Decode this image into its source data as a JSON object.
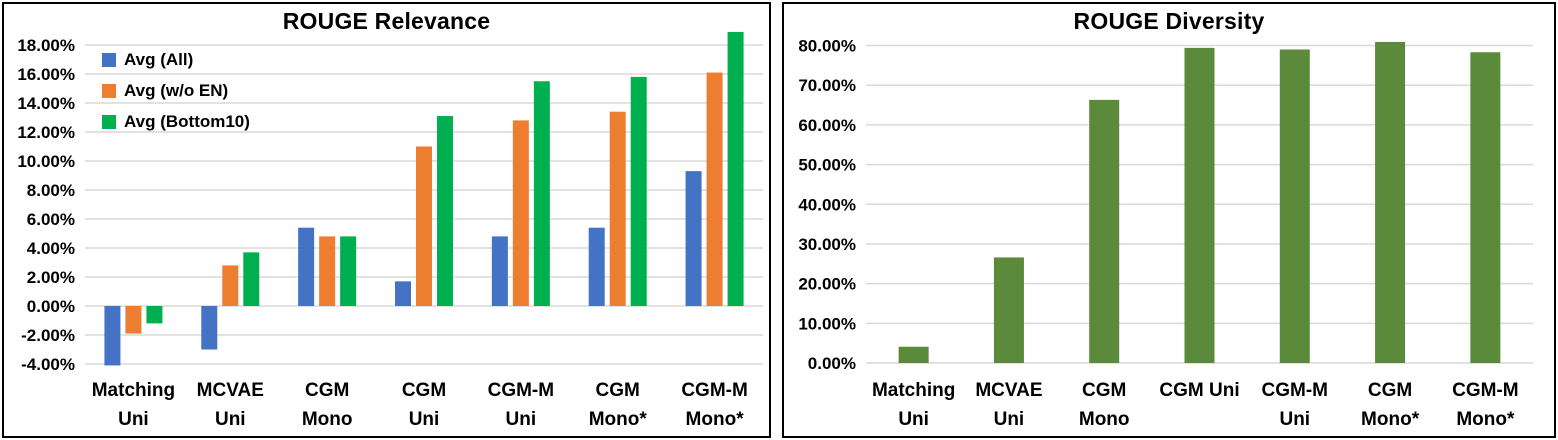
{
  "chart_data": [
    {
      "type": "bar",
      "title": "ROUGE Relevance",
      "xlabel": "",
      "ylabel": "",
      "grid": true,
      "grid_color": "#D9D9D9",
      "legend_position": "top-left",
      "ylim": [
        -4,
        18
      ],
      "ytick_step": 2,
      "yticks": [
        {
          "value": -4,
          "label": "-4.00%"
        },
        {
          "value": -2,
          "label": "-2.00%"
        },
        {
          "value": 0,
          "label": "0.00%"
        },
        {
          "value": 2,
          "label": "2.00%"
        },
        {
          "value": 4,
          "label": "4.00%"
        },
        {
          "value": 6,
          "label": "6.00%"
        },
        {
          "value": 8,
          "label": "8.00%"
        },
        {
          "value": 10,
          "label": "10.00%"
        },
        {
          "value": 12,
          "label": "12.00%"
        },
        {
          "value": 14,
          "label": "14.00%"
        },
        {
          "value": 16,
          "label": "16.00%"
        },
        {
          "value": 18,
          "label": "18.00%"
        }
      ],
      "categories": [
        "Matching Uni",
        "MCVAE Uni",
        "CGM Mono",
        "CGM Uni",
        "CGM-M Uni",
        "CGM Mono*",
        "CGM-M Mono*"
      ],
      "category_label_lines": [
        [
          "Matching",
          "Uni"
        ],
        [
          "MCVAE",
          "Uni"
        ],
        [
          "CGM",
          "Mono"
        ],
        [
          "CGM",
          "Uni"
        ],
        [
          "CGM-M",
          "Uni"
        ],
        [
          "CGM",
          "Mono*"
        ],
        [
          "CGM-M",
          "Mono*"
        ]
      ],
      "series": [
        {
          "name": "Avg (All)",
          "color": "#4472C4",
          "values": [
            -4.1,
            -3.0,
            5.4,
            1.7,
            4.8,
            5.4,
            9.3
          ]
        },
        {
          "name": "Avg (w/o EN)",
          "color": "#ED7D31",
          "values": [
            -1.9,
            2.8,
            4.8,
            11.0,
            12.8,
            13.4,
            16.1
          ]
        },
        {
          "name": "Avg (Bottom10)",
          "color": "#00B050",
          "values": [
            -1.2,
            3.7,
            4.8,
            13.1,
            15.5,
            15.8,
            18.9
          ]
        }
      ]
    },
    {
      "type": "bar",
      "title": "ROUGE Diversity",
      "xlabel": "",
      "ylabel": "",
      "grid": true,
      "grid_color": "#D9D9D9",
      "legend_position": "none",
      "ylim": [
        0,
        80
      ],
      "ytick_step": 10,
      "yticks": [
        {
          "value": 0,
          "label": "0.00%"
        },
        {
          "value": 10,
          "label": "10.00%"
        },
        {
          "value": 20,
          "label": "20.00%"
        },
        {
          "value": 30,
          "label": "30.00%"
        },
        {
          "value": 40,
          "label": "40.00%"
        },
        {
          "value": 50,
          "label": "50.00%"
        },
        {
          "value": 60,
          "label": "60.00%"
        },
        {
          "value": 70,
          "label": "70.00%"
        },
        {
          "value": 80,
          "label": "80.00%"
        }
      ],
      "categories": [
        "Matching Uni",
        "MCVAE Uni",
        "CGM Mono",
        "CGM Uni",
        "CGM-M Uni",
        "CGM Mono*",
        "CGM-M Mono*"
      ],
      "category_label_lines": [
        [
          "Matching",
          "Uni"
        ],
        [
          "MCVAE",
          "Uni"
        ],
        [
          "CGM",
          "Mono"
        ],
        [
          "CGM Uni"
        ],
        [
          "CGM-M",
          "Uni"
        ],
        [
          "CGM",
          "Mono*"
        ],
        [
          "CGM-M",
          "Mono*"
        ]
      ],
      "series": [
        {
          "name": "ROUGE Diversity",
          "color": "#5B8A3B",
          "values": [
            4.1,
            26.6,
            66.3,
            79.4,
            79.0,
            80.9,
            78.3
          ]
        }
      ]
    }
  ]
}
